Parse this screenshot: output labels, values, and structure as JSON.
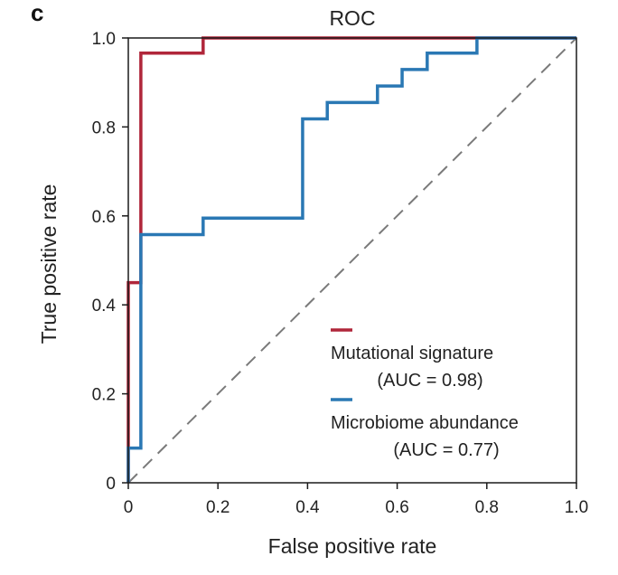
{
  "panel_label": "c",
  "chart_data": {
    "type": "line",
    "title": "ROC",
    "xlabel": "False positive rate",
    "ylabel": "True positive rate",
    "xlim": [
      0,
      1.0
    ],
    "ylim": [
      0,
      1.0
    ],
    "x_ticks": [
      "0",
      "0.2",
      "0.4",
      "0.6",
      "0.8",
      "1.0"
    ],
    "y_ticks": [
      "0",
      "0.2",
      "0.4",
      "0.6",
      "0.8",
      "1.0"
    ],
    "x_tick_values": [
      0,
      0.2,
      0.4,
      0.6,
      0.8,
      1.0
    ],
    "y_tick_values": [
      0,
      0.2,
      0.4,
      0.6,
      0.8,
      1.0
    ],
    "grid": false,
    "legend_position": "lower-right",
    "diagonal_reference": true,
    "diagonal_color": "#7a7a7a",
    "series": [
      {
        "name": "Mutational signature",
        "auc_label": "(AUC = 0.98)",
        "color": "#b0263a",
        "points": [
          [
            0,
            0
          ],
          [
            0,
            0.45
          ],
          [
            0.028,
            0.45
          ],
          [
            0.028,
            0.966
          ],
          [
            0.167,
            0.966
          ],
          [
            0.167,
            1.0
          ],
          [
            1.0,
            1.0
          ]
        ]
      },
      {
        "name": "Microbiome abundance",
        "auc_label": "(AUC = 0.77)",
        "color": "#2a78b4",
        "points": [
          [
            0,
            0
          ],
          [
            0,
            0.078
          ],
          [
            0.028,
            0.078
          ],
          [
            0.028,
            0.558
          ],
          [
            0.167,
            0.558
          ],
          [
            0.167,
            0.595
          ],
          [
            0.389,
            0.595
          ],
          [
            0.389,
            0.818
          ],
          [
            0.444,
            0.818
          ],
          [
            0.444,
            0.855
          ],
          [
            0.556,
            0.855
          ],
          [
            0.556,
            0.892
          ],
          [
            0.611,
            0.892
          ],
          [
            0.611,
            0.929
          ],
          [
            0.667,
            0.929
          ],
          [
            0.667,
            0.966
          ],
          [
            0.778,
            0.966
          ],
          [
            0.778,
            1.0
          ],
          [
            1.0,
            1.0
          ]
        ]
      }
    ]
  }
}
